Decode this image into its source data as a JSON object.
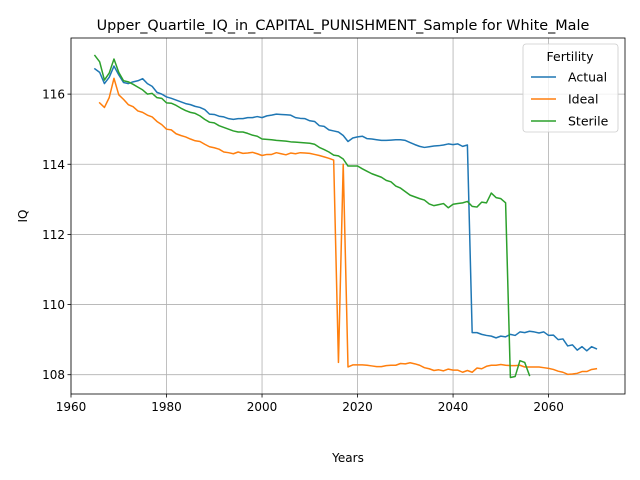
{
  "chart_data": {
    "type": "line",
    "title": "Upper_Quartile_IQ_in_CAPITAL_PUNISHMENT_Sample for White_Male",
    "xlabel": "Years",
    "ylabel": "IQ",
    "xlim": [
      1960,
      2076
    ],
    "ylim": [
      107.45,
      117.6
    ],
    "xticks": [
      1960,
      1980,
      2000,
      2020,
      2040,
      2060
    ],
    "yticks": [
      108,
      110,
      112,
      114,
      116
    ],
    "grid": true,
    "legend": {
      "title": "Fertility",
      "placement": "upper right"
    },
    "series": [
      {
        "name": "Actual",
        "color": "#1f77b4",
        "x": [
          1965,
          1966,
          1967,
          1968,
          1969,
          1970,
          1971,
          1972,
          1973,
          1974,
          1975,
          1976,
          1977,
          1978,
          1979,
          1980,
          1981,
          1982,
          1983,
          1984,
          1985,
          1986,
          1987,
          1988,
          1989,
          1990,
          1991,
          1992,
          1993,
          1994,
          1995,
          1996,
          1997,
          1998,
          1999,
          2000,
          2001,
          2002,
          2003,
          2004,
          2005,
          2006,
          2007,
          2008,
          2009,
          2010,
          2011,
          2012,
          2013,
          2014,
          2015,
          2016,
          2017,
          2018,
          2019,
          2020,
          2021,
          2022,
          2023,
          2024,
          2025,
          2026,
          2027,
          2028,
          2029,
          2030,
          2031,
          2032,
          2033,
          2034,
          2035,
          2036,
          2037,
          2038,
          2039,
          2040,
          2041,
          2042,
          2043,
          2044,
          2045,
          2046,
          2047,
          2048,
          2049,
          2050,
          2051,
          2052,
          2053,
          2054,
          2055,
          2056,
          2057,
          2058,
          2059,
          2060,
          2061,
          2062,
          2063,
          2064,
          2065,
          2066,
          2067,
          2068,
          2069,
          2070
        ],
        "values": [
          116.72,
          116.62,
          116.3,
          116.48,
          116.8,
          116.55,
          116.33,
          116.3,
          116.35,
          116.38,
          116.44,
          116.3,
          116.22,
          116.05,
          116.0,
          115.92,
          115.88,
          115.83,
          115.78,
          115.73,
          115.7,
          115.65,
          115.62,
          115.56,
          115.43,
          115.42,
          115.37,
          115.35,
          115.3,
          115.28,
          115.3,
          115.3,
          115.33,
          115.33,
          115.36,
          115.33,
          115.38,
          115.4,
          115.43,
          115.42,
          115.41,
          115.4,
          115.33,
          115.31,
          115.3,
          115.24,
          115.22,
          115.1,
          115.08,
          114.98,
          114.95,
          114.92,
          114.82,
          114.65,
          114.75,
          114.78,
          114.8,
          114.73,
          114.72,
          114.7,
          114.68,
          114.68,
          114.69,
          114.7,
          114.7,
          114.68,
          114.62,
          114.56,
          114.51,
          114.48,
          114.5,
          114.52,
          114.53,
          114.55,
          114.58,
          114.56,
          114.58,
          114.51,
          114.55,
          109.2,
          109.2,
          109.15,
          109.12,
          109.1,
          109.05,
          109.1,
          109.08,
          109.15,
          109.12,
          109.22,
          109.2,
          109.24,
          109.22,
          109.19,
          109.22,
          109.12,
          109.13,
          109.0,
          109.02,
          108.82,
          108.85,
          108.7,
          108.8,
          108.68,
          108.8,
          108.74
        ]
      },
      {
        "name": "Ideal",
        "color": "#ff7f0e",
        "x": [
          1966,
          1967,
          1968,
          1969,
          1970,
          1971,
          1972,
          1973,
          1974,
          1975,
          1976,
          1977,
          1978,
          1979,
          1980,
          1981,
          1982,
          1983,
          1984,
          1985,
          1986,
          1987,
          1988,
          1989,
          1990,
          1991,
          1992,
          1993,
          1994,
          1995,
          1996,
          1997,
          1998,
          1999,
          2000,
          2001,
          2002,
          2003,
          2004,
          2005,
          2006,
          2007,
          2008,
          2009,
          2010,
          2011,
          2012,
          2013,
          2014,
          2015,
          2016,
          2017,
          2018,
          2019,
          2020,
          2021,
          2022,
          2023,
          2024,
          2025,
          2026,
          2027,
          2028,
          2029,
          2030,
          2031,
          2032,
          2033,
          2034,
          2035,
          2036,
          2037,
          2038,
          2039,
          2040,
          2041,
          2042,
          2043,
          2044,
          2045,
          2046,
          2047,
          2048,
          2049,
          2050,
          2051,
          2052,
          2053,
          2054,
          2055,
          2056,
          2057,
          2058,
          2059,
          2060,
          2061,
          2062,
          2063,
          2064,
          2065,
          2066,
          2067,
          2068,
          2069,
          2070
        ],
        "values": [
          115.75,
          115.62,
          115.9,
          116.45,
          115.98,
          115.85,
          115.7,
          115.64,
          115.52,
          115.48,
          115.4,
          115.35,
          115.22,
          115.13,
          115.0,
          114.98,
          114.87,
          114.82,
          114.78,
          114.72,
          114.67,
          114.65,
          114.57,
          114.5,
          114.47,
          114.43,
          114.35,
          114.33,
          114.3,
          114.35,
          114.31,
          114.32,
          114.34,
          114.3,
          114.25,
          114.28,
          114.28,
          114.33,
          114.3,
          114.27,
          114.32,
          114.3,
          114.33,
          114.32,
          114.31,
          114.28,
          114.25,
          114.21,
          114.17,
          114.12,
          108.35,
          114.0,
          108.22,
          108.28,
          108.28,
          108.28,
          108.27,
          108.25,
          108.23,
          108.23,
          108.26,
          108.27,
          108.27,
          108.32,
          108.31,
          108.34,
          108.31,
          108.27,
          108.2,
          108.17,
          108.12,
          108.14,
          108.11,
          108.16,
          108.13,
          108.13,
          108.07,
          108.12,
          108.07,
          108.19,
          108.17,
          108.24,
          108.27,
          108.27,
          108.29,
          108.27,
          108.26,
          108.26,
          108.27,
          108.22,
          108.22,
          108.22,
          108.22,
          108.2,
          108.18,
          108.15,
          108.1,
          108.07,
          108.01,
          108.02,
          108.04,
          108.09,
          108.09,
          108.15,
          108.17
        ]
      },
      {
        "name": "Sterile",
        "color": "#2ca02c",
        "x": [
          1965,
          1966,
          1967,
          1968,
          1969,
          1970,
          1971,
          1972,
          1973,
          1974,
          1975,
          1976,
          1977,
          1978,
          1979,
          1980,
          1981,
          1982,
          1983,
          1984,
          1985,
          1986,
          1987,
          1988,
          1989,
          1990,
          1991,
          1992,
          1993,
          1994,
          1995,
          1996,
          1997,
          1998,
          1999,
          2000,
          2001,
          2002,
          2003,
          2004,
          2005,
          2006,
          2007,
          2008,
          2009,
          2010,
          2011,
          2012,
          2013,
          2014,
          2015,
          2016,
          2017,
          2018,
          2019,
          2020,
          2021,
          2022,
          2023,
          2024,
          2025,
          2026,
          2027,
          2028,
          2029,
          2030,
          2031,
          2032,
          2033,
          2034,
          2035,
          2036,
          2037,
          2038,
          2039,
          2040,
          2041,
          2042,
          2043,
          2044,
          2045,
          2046,
          2047,
          2048,
          2049,
          2050,
          2051,
          2052,
          2053,
          2054,
          2055,
          2056
        ],
        "values": [
          117.1,
          116.92,
          116.4,
          116.6,
          117.0,
          116.62,
          116.38,
          116.35,
          116.28,
          116.2,
          116.12,
          116.0,
          116.02,
          115.9,
          115.88,
          115.75,
          115.74,
          115.68,
          115.6,
          115.53,
          115.48,
          115.45,
          115.38,
          115.28,
          115.2,
          115.18,
          115.1,
          115.05,
          115.0,
          114.95,
          114.92,
          114.92,
          114.88,
          114.83,
          114.8,
          114.72,
          114.71,
          114.7,
          114.68,
          114.67,
          114.66,
          114.64,
          114.63,
          114.62,
          114.61,
          114.6,
          114.57,
          114.48,
          114.42,
          114.35,
          114.26,
          114.24,
          114.15,
          113.95,
          113.95,
          113.95,
          113.87,
          113.8,
          113.73,
          113.68,
          113.63,
          113.54,
          113.5,
          113.38,
          113.32,
          113.22,
          113.12,
          113.07,
          113.02,
          112.98,
          112.87,
          112.82,
          112.85,
          112.88,
          112.76,
          112.86,
          112.88,
          112.9,
          112.94,
          112.8,
          112.78,
          112.92,
          112.9,
          113.18,
          113.05,
          113.02,
          112.9,
          107.92,
          107.95,
          108.4,
          108.35,
          107.98
        ]
      }
    ]
  }
}
